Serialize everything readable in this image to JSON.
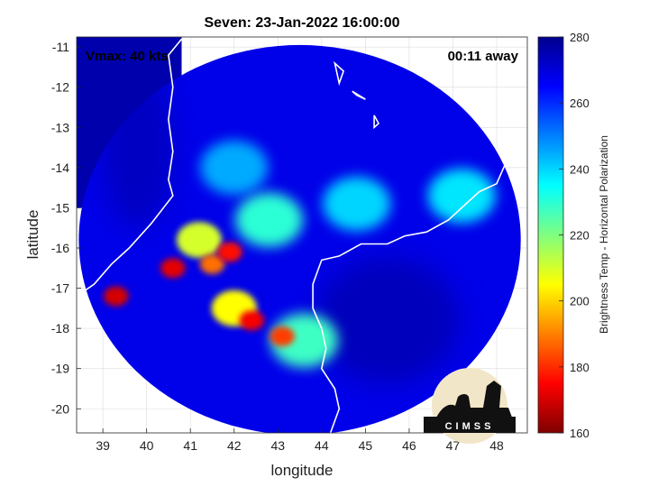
{
  "chart_data": {
    "type": "heatmap",
    "title": "Seven: 23-Jan-2022 16:00:00",
    "xlabel": "longitude",
    "ylabel": "latitude",
    "xlim": [
      38.4,
      48.7
    ],
    "ylim": [
      -20.6,
      -10.75
    ],
    "x_ticks": [
      39,
      40,
      41,
      42,
      43,
      44,
      45,
      46,
      47,
      48
    ],
    "y_ticks": [
      -11,
      -12,
      -13,
      -14,
      -15,
      -16,
      -17,
      -18,
      -19,
      -20
    ],
    "grid": true,
    "annotations": {
      "vmax": "Vmax: 40 kts",
      "time_away": "00:11 away"
    },
    "colorbar": {
      "label": "Brightness Temp - Horizontal Polarization",
      "range": [
        160,
        280
      ],
      "ticks": [
        160,
        180,
        200,
        220,
        240,
        260,
        280
      ],
      "colors": [
        "#7f0000",
        "#ff0000",
        "#ff8000",
        "#ffff00",
        "#80ff80",
        "#00ffff",
        "#0080ff",
        "#0000ff",
        "#00008f"
      ]
    },
    "swath": {
      "center": [
        43.5,
        -15.8
      ],
      "radius_lon": 5.05,
      "radius_lat": 4.85,
      "background_temp": 268,
      "outside_left_temp": 276
    },
    "features": [
      {
        "name": "cold-core-a",
        "lon": 39.3,
        "lat": -17.2,
        "temp": 170
      },
      {
        "name": "cold-core-b",
        "lon": 40.6,
        "lat": -16.5,
        "temp": 172
      },
      {
        "name": "cold-core-c",
        "lon": 41.9,
        "lat": -16.1,
        "temp": 176
      },
      {
        "name": "cold-core-d",
        "lon": 42.4,
        "lat": -17.8,
        "temp": 174
      },
      {
        "name": "cold-core-e",
        "lon": 43.1,
        "lat": -18.2,
        "temp": 182
      },
      {
        "name": "cold-core-f",
        "lon": 41.5,
        "lat": -16.4,
        "temp": 188
      },
      {
        "name": "rainband-west",
        "lon": 41.2,
        "lat": -15.8,
        "temp": 210
      },
      {
        "name": "rainband-south",
        "lon": 42.0,
        "lat": -17.5,
        "temp": 205
      },
      {
        "name": "rainband-arc",
        "lon": 42.8,
        "lat": -15.3,
        "temp": 230
      },
      {
        "name": "rainband-east",
        "lon": 44.8,
        "lat": -14.9,
        "temp": 240
      },
      {
        "name": "rainband-far-east",
        "lon": 47.2,
        "lat": -14.7,
        "temp": 238
      },
      {
        "name": "rainband-north",
        "lon": 42.0,
        "lat": -14.0,
        "temp": 245
      },
      {
        "name": "rainband-south-arc",
        "lon": 43.6,
        "lat": -18.3,
        "temp": 228
      }
    ],
    "logo_text": "CIMSS"
  }
}
